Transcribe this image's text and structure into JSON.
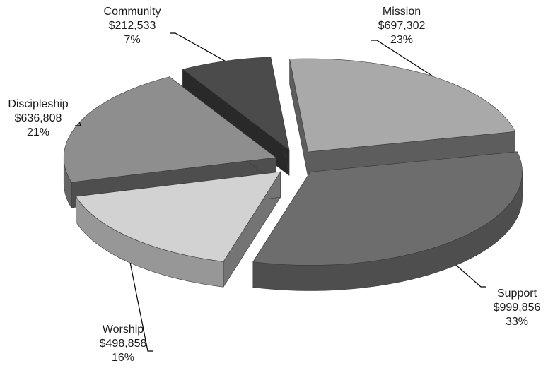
{
  "chart_data": {
    "type": "pie",
    "style": "3d-exploded",
    "title": "",
    "slices": [
      {
        "name": "Mission",
        "value": 697302,
        "value_label": "$697,302",
        "percent_label": "23%",
        "color": "#a9a9a9"
      },
      {
        "name": "Support",
        "value": 999856,
        "value_label": "$999,856",
        "percent_label": "33%",
        "color": "#6d6d6d"
      },
      {
        "name": "Worship",
        "value": 498858,
        "value_label": "$498,858",
        "percent_label": "16%",
        "color": "#d2d2d2"
      },
      {
        "name": "Discipleship",
        "value": 636808,
        "value_label": "$636,808",
        "percent_label": "21%",
        "color": "#8e8e8e"
      },
      {
        "name": "Community",
        "value": 212533,
        "value_label": "$212,533",
        "percent_label": "7%",
        "color": "#4b4b4b"
      }
    ]
  }
}
